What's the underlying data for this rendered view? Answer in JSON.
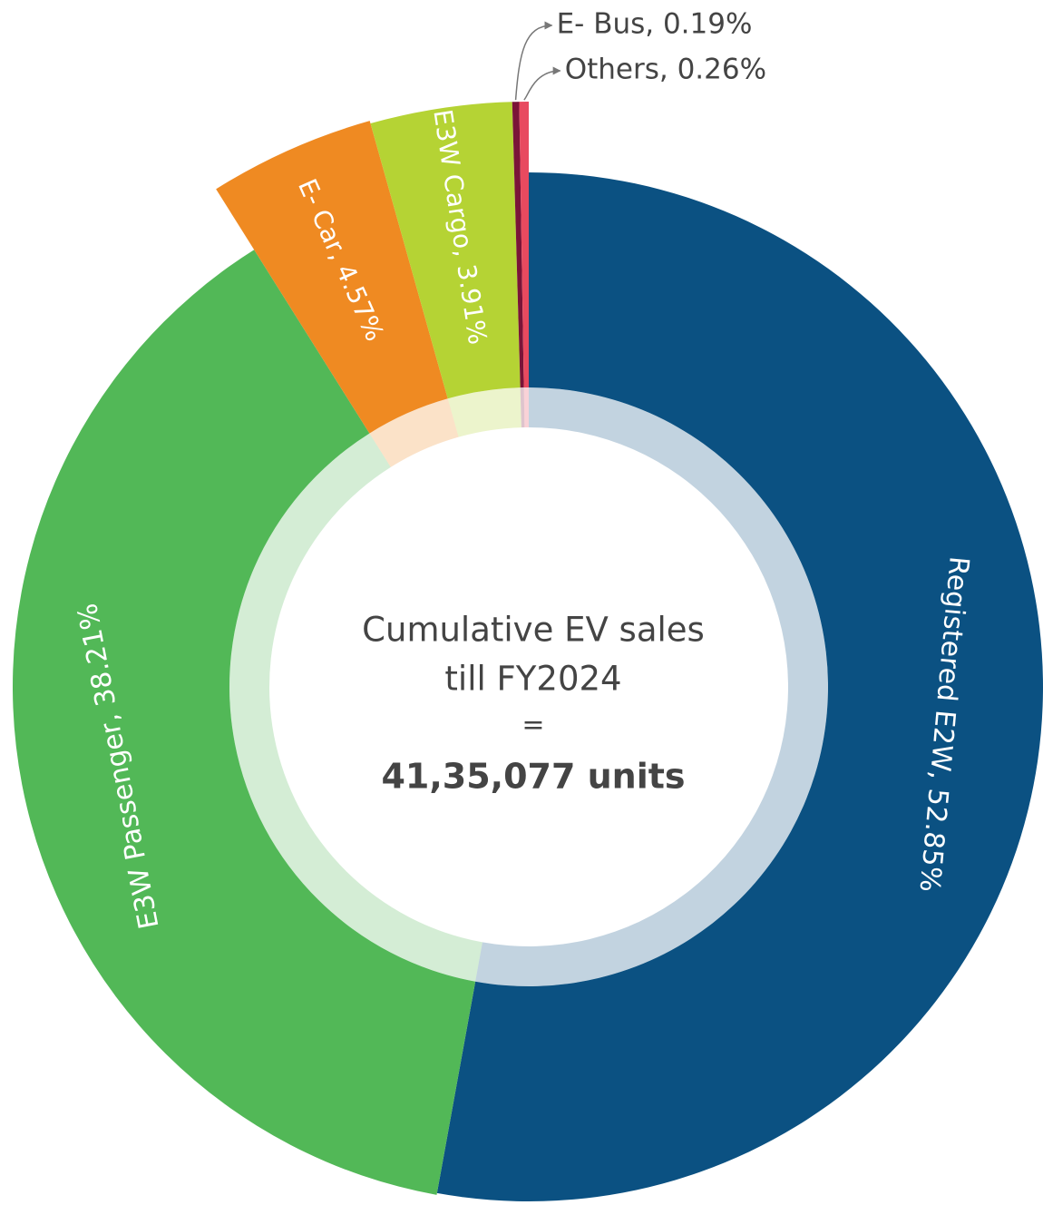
{
  "chart_data": {
    "type": "donut",
    "values": [
      52.85,
      38.21,
      4.57,
      3.91,
      0.19,
      0.26
    ],
    "value_labels": [
      "Registered E2W, 52.85%",
      "E3W Passenger, 38.21%",
      "E- Car, 4.57%",
      "E3W Cargo, 3.91%",
      "E- Bus, 0.19%",
      "Others, 0.26%"
    ],
    "colors": [
      "#0b5182",
      "#52b857",
      "#ef8a22",
      "#b5d334",
      "#7a1438",
      "#e84a5f"
    ],
    "center_text": [
      "Cumulative EV sales",
      "till FY2024",
      "=",
      "41,35,077 units"
    ]
  }
}
